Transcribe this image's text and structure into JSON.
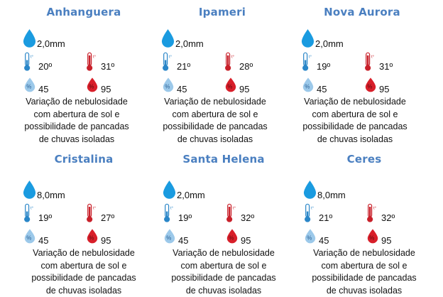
{
  "cities": [
    {
      "name": "Anhanguera",
      "rain": "2,0mm",
      "tmin": "20º",
      "tmax": "31º",
      "hmin": "45",
      "hmax": "95",
      "forecast": [
        "Variação de nebulosidade",
        "com abertura de sol e",
        "possibilidade  de pancadas",
        "de chuvas isoladas"
      ]
    },
    {
      "name": "Ipameri",
      "rain": "2,0mm",
      "tmin": "21º",
      "tmax": "28º",
      "hmin": "45",
      "hmax": "95",
      "forecast": [
        "Variação de nebulosidade",
        "com abertura de sol e",
        "possibilidade  de pancadas",
        "de chuvas isoladas"
      ]
    },
    {
      "name": "Nova Aurora",
      "rain": "2,0mm",
      "tmin": "19º",
      "tmax": "31º",
      "hmin": "45",
      "hmax": "95",
      "forecast": [
        "Variação de nebulosidade",
        "com abertura de sol e",
        "possibilidade  de pancadas",
        "de chuvas isoladas"
      ]
    },
    {
      "name": "Cristalina",
      "rain": "8,0mm",
      "tmin": "19º",
      "tmax": "27º",
      "hmin": "45",
      "hmax": "95",
      "forecast": [
        "Variação de nebulosidade",
        "com abertura de sol e",
        "possibilidade  de pancadas",
        "de chuvas isoladas"
      ]
    },
    {
      "name": "Santa Helena",
      "rain": "2,0mm",
      "tmin": "19º",
      "tmax": "32º",
      "hmin": "45",
      "hmax": "95",
      "forecast": [
        "Variação de nebulosidade",
        "com abertura de sol e",
        "possibilidade  de pancadas",
        "de chuvas isoladas"
      ]
    },
    {
      "name": "Ceres",
      "rain": "8,0mm",
      "tmin": "21º",
      "tmax": "32º",
      "hmin": "45",
      "hmax": "95",
      "forecast": [
        "Variação de nebulosidade",
        "com abertura de sol e",
        "possibilidade  de pancadas",
        "de chuvas isoladas"
      ]
    }
  ],
  "icons": {
    "rain": "rain-drop-icon",
    "tmin": "thermometer-cold-icon",
    "tmax": "thermometer-hot-icon",
    "hmin": "humidity-low-icon",
    "hmax": "humidity-high-icon"
  },
  "colors": {
    "title": "#4a7fc0",
    "rain": "#1a9be0",
    "cold": "#2a86c8",
    "hot": "#c8202a",
    "humidity_low": "#8fc3e8",
    "humidity_high": "#d81f2a"
  },
  "labels": {
    "thermo_mark": "t°",
    "humidity_mark": "%"
  }
}
